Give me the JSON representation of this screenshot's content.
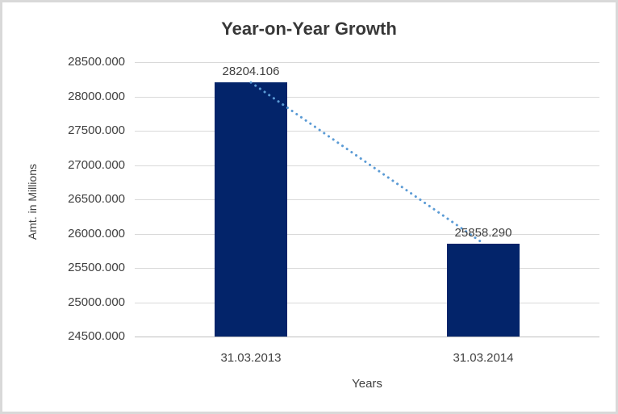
{
  "chart_data": {
    "type": "bar",
    "title": "Year-on-Year Growth",
    "categories": [
      "31.03.2013",
      "31.03.2014"
    ],
    "values": [
      28204.106,
      25858.29
    ],
    "data_labels": [
      "28204.106",
      "25858.290"
    ],
    "xlabel": "Years",
    "ylabel": "Amt. in Millions",
    "ylim": [
      24500,
      28500
    ],
    "ytick_step": 500,
    "ytick_labels": [
      "28500.000",
      "28000.000",
      "27500.000",
      "27000.000",
      "26500.000",
      "26000.000",
      "25500.000",
      "25000.000",
      "24500.000"
    ],
    "grid": true,
    "legend": false,
    "trendline": {
      "style": "dotted",
      "color": "#5B9BD5",
      "from_value": 28204.106,
      "to_value": 25858.29
    },
    "colors": {
      "bar": "#03246A",
      "gridline": "#d9d9d9",
      "axis_line": "#bfbfbf",
      "text": "#404040",
      "title_text": "#383838",
      "frame_border": "#d9d9d9",
      "background": "#ffffff"
    }
  }
}
